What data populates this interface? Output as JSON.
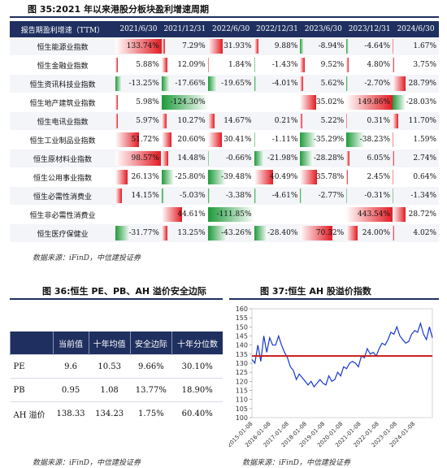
{
  "figure35": {
    "title": "图 35:2021 年以来港股分板块盈利增速周期",
    "corner_header": "报告期盈利增速（TTM）",
    "source": "数据来源：iFinD，中信建投证券"
  },
  "figure36": {
    "title": "图 36:恒生 PE、PB、AH 溢价安全边际",
    "source": "数据来源：iFinD，中信建投证券",
    "headers": [
      "",
      "当前值",
      "十年均值",
      "安全边际",
      "十年分位数"
    ],
    "rows": [
      {
        "name": "PE",
        "current": "9.6",
        "avg": "10.53",
        "margin": "9.66%",
        "pct": "30.10%"
      },
      {
        "name": "PB",
        "current": "0.95",
        "avg": "1.08",
        "margin": "13.77%",
        "pct": "18.90%"
      },
      {
        "name": "AH 溢价",
        "current": "138.33",
        "avg": "134.23",
        "margin": "1.75%",
        "pct": "60.40%"
      }
    ]
  },
  "figure37": {
    "title": "图 37:恒生 AH 股溢价指数",
    "source": "数据来源：iFinD，中信建投证券"
  },
  "chart_data": [
    {
      "type": "table",
      "title": "图 35:2021 年以来港股分板块盈利增速周期",
      "columns": [
        "2021/6/30",
        "2021/12/31",
        "2022/6/30",
        "2022/12/31",
        "2023/6/30",
        "2023/12/31",
        "2024/6/30"
      ],
      "rows": [
        {
          "name": "恒生能源业指数",
          "labels": [
            "133.74%",
            "7.29%",
            "31.93%",
            "9.88%",
            "-8.94%",
            "-4.64%",
            "1.67%"
          ],
          "values": [
            133.74,
            7.29,
            31.93,
            9.88,
            -8.94,
            -4.64,
            1.67
          ]
        },
        {
          "name": "恒生金融业指数",
          "labels": [
            "5.88%",
            "12.09%",
            "1.84%",
            "-1.43%",
            "9.52%",
            "4.80%",
            "3.75%"
          ],
          "values": [
            5.88,
            12.09,
            1.84,
            -1.43,
            9.52,
            4.8,
            3.75
          ]
        },
        {
          "name": "恒生资讯科技业指数",
          "labels": [
            "-13.25%",
            "-17.66%",
            "-19.65%",
            "-4.01%",
            "5.62%",
            "-2.70%",
            "28.79%"
          ],
          "values": [
            -13.25,
            -17.66,
            -19.65,
            -4.01,
            5.62,
            -2.7,
            28.79
          ]
        },
        {
          "name": "恒生地产建筑业指数",
          "labels": [
            "5.98%",
            "-124.30%",
            "",
            "",
            "35.02%",
            "149.86%",
            "-28.03%"
          ],
          "values": [
            5.98,
            -124.3,
            null,
            null,
            35.02,
            149.86,
            -28.03
          ]
        },
        {
          "name": "恒生电讯业指数",
          "labels": [
            "5.97%",
            "10.27%",
            "14.67%",
            "0.21%",
            "5.22%",
            "0.31%",
            "11.70%"
          ],
          "values": [
            5.97,
            10.27,
            14.67,
            0.21,
            5.22,
            0.31,
            11.7
          ]
        },
        {
          "name": "恒生工业制品业指数",
          "labels": [
            "51.72%",
            "20.60%",
            "30.41%",
            "-1.11%",
            "-35.29%",
            "-38.23%",
            "1.59%"
          ],
          "values": [
            51.72,
            20.6,
            30.41,
            -1.11,
            -35.29,
            -38.23,
            1.59
          ]
        },
        {
          "name": "恒生原材料业指数",
          "labels": [
            "98.57%",
            "14.48%",
            "-0.66%",
            "-21.98%",
            "-28.28%",
            "6.05%",
            "2.74%"
          ],
          "values": [
            98.57,
            14.48,
            -0.66,
            -21.98,
            -28.28,
            6.05,
            2.74
          ]
        },
        {
          "name": "恒生公用事业指数",
          "labels": [
            "26.13%",
            "-25.80%",
            "-39.48%",
            "40.49%",
            "35.78%",
            "2.45%",
            "0.64%"
          ],
          "values": [
            26.13,
            -25.8,
            -39.48,
            40.49,
            35.78,
            2.45,
            0.64
          ]
        },
        {
          "name": "恒生必需性消费业",
          "labels": [
            "14.15%",
            "-5.03%",
            "-3.38%",
            "-4.61%",
            "-2.77%",
            "-0.31%",
            "-1.34%"
          ],
          "values": [
            14.15,
            -5.03,
            -3.38,
            -4.61,
            -2.77,
            -0.31,
            -1.34
          ]
        },
        {
          "name": "恒生非必需性消费业",
          "labels": [
            "",
            "44.61%",
            "-111.85%",
            "",
            "",
            "443.54%",
            "28.72%"
          ],
          "values": [
            null,
            44.61,
            -111.85,
            null,
            null,
            443.54,
            28.72
          ]
        },
        {
          "name": "恒生医疗保健业",
          "labels": [
            "-31.77%",
            "13.25%",
            "-43.26%",
            "-28.40%",
            "70.32%",
            "24.00%",
            "4.02%"
          ],
          "values": [
            -31.77,
            13.25,
            -43.26,
            -28.4,
            70.32,
            24.0,
            4.02
          ]
        }
      ]
    },
    {
      "type": "line",
      "title": "图 37:恒生 AH 股溢价指数",
      "ylim": [
        100,
        160
      ],
      "yticks": [
        100,
        105,
        110,
        115,
        120,
        125,
        130,
        135,
        140,
        145,
        150,
        155,
        160
      ],
      "xtick_labels": [
        "2015-01-08",
        "2016-01-08",
        "2017-01-08",
        "2018-01-08",
        "2019-01-08",
        "2020-01-08",
        "2021-01-08",
        "2022-01-08",
        "2023-01-08",
        "2024-01-08"
      ],
      "x": [
        "2015-01",
        "2015-03",
        "2015-04",
        "2015-05",
        "2015-06",
        "2015-07",
        "2015-08",
        "2015-10",
        "2015-12",
        "2016-02",
        "2016-04",
        "2016-06",
        "2016-08",
        "2016-10",
        "2016-12",
        "2017-02",
        "2017-04",
        "2017-06",
        "2017-08",
        "2017-10",
        "2017-12",
        "2018-01",
        "2018-03",
        "2018-05",
        "2018-07",
        "2018-09",
        "2018-11",
        "2019-01",
        "2019-03",
        "2019-05",
        "2019-07",
        "2019-09",
        "2019-11",
        "2020-01",
        "2020-03",
        "2020-05",
        "2020-07",
        "2020-09",
        "2020-11",
        "2021-01",
        "2021-03",
        "2021-05",
        "2021-07",
        "2021-09",
        "2021-11",
        "2022-01",
        "2022-03",
        "2022-05",
        "2022-07",
        "2022-09",
        "2022-11",
        "2023-01",
        "2023-03",
        "2023-05",
        "2023-07",
        "2023-09",
        "2023-11",
        "2024-01",
        "2024-03",
        "2024-05",
        "2024-07",
        "2024-09"
      ],
      "series": [
        {
          "values": [
            132,
            130,
            140,
            131,
            145,
            136,
            144,
            140,
            140,
            145,
            140,
            136,
            133,
            128,
            126,
            121,
            124,
            122,
            120,
            118,
            120,
            117,
            119,
            121,
            119,
            118,
            123,
            120,
            121,
            125,
            123,
            128,
            127,
            130,
            131,
            130,
            128,
            134,
            133,
            138,
            135,
            136,
            134,
            138,
            141,
            140,
            143,
            147,
            146,
            150,
            145,
            143,
            141,
            142,
            146,
            148,
            147,
            152,
            146,
            143,
            150,
            144
          ]
        },
        {
          "values": [
            134,
            134,
            134,
            134,
            134,
            134,
            134,
            134,
            134,
            134,
            134,
            134,
            134,
            134,
            134,
            134,
            134,
            134,
            134,
            134,
            134,
            134,
            134,
            134,
            134,
            134,
            134,
            134,
            134,
            134,
            134,
            134,
            134,
            134,
            134,
            134,
            134,
            134,
            134,
            134,
            134,
            134,
            134,
            134,
            134,
            134,
            134,
            134,
            134,
            134,
            134,
            134,
            134,
            134,
            134,
            134,
            134,
            134,
            134,
            134,
            134,
            134
          ]
        }
      ],
      "colors": [
        "#1536d6",
        "#c81a1a"
      ]
    }
  ]
}
